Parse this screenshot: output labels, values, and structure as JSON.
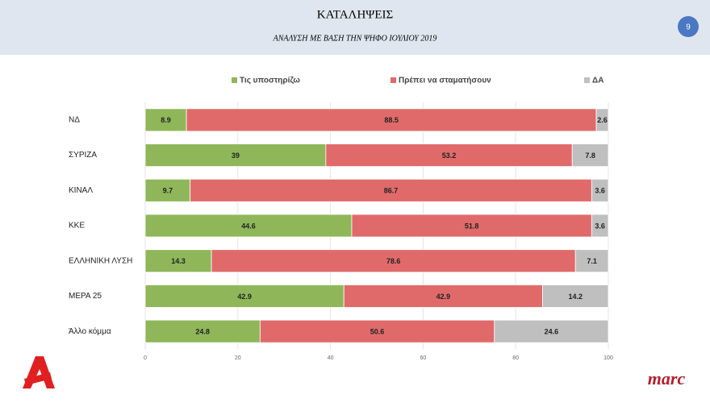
{
  "header": {
    "title": "ΚΑΤΑΛΗΨΕΙΣ",
    "subtitle": "ΑΝΑΛΥΣΗ ΜΕ ΒΑΣΗ ΤΗΝ ΨΗΦΟ ΙΟΥΛΙΟΥ 2019",
    "page_number": "9"
  },
  "brand": "marc",
  "chart_data": {
    "type": "stacked-barh",
    "categories": [
      "ΝΔ",
      "ΣΥΡΙΖΑ",
      "ΚΙΝΑΛ",
      "ΚΚΕ",
      "ΕΛΛΗΝΙΚΗ ΛΥΣΗ",
      "ΜΕΡΑ 25",
      "Άλλο κόμμα"
    ],
    "series": [
      {
        "name": "Τις υποστηρίζω",
        "color": "#8fb75a",
        "values": [
          8.9,
          39,
          9.7,
          44.6,
          14.3,
          42.9,
          24.8
        ]
      },
      {
        "name": "Πρέπει να σταματήσουν",
        "color": "#e06a6a",
        "values": [
          88.5,
          53.2,
          86.7,
          51.8,
          78.6,
          42.9,
          50.6
        ]
      },
      {
        "name": "ΔΑ",
        "color": "#bfbfbf",
        "values": [
          2.6,
          7.8,
          3.6,
          3.6,
          7.1,
          14.2,
          24.6
        ]
      }
    ],
    "xlim": [
      0,
      100
    ],
    "xticks": [
      0,
      20,
      40,
      60,
      80,
      100
    ],
    "grid": true
  }
}
